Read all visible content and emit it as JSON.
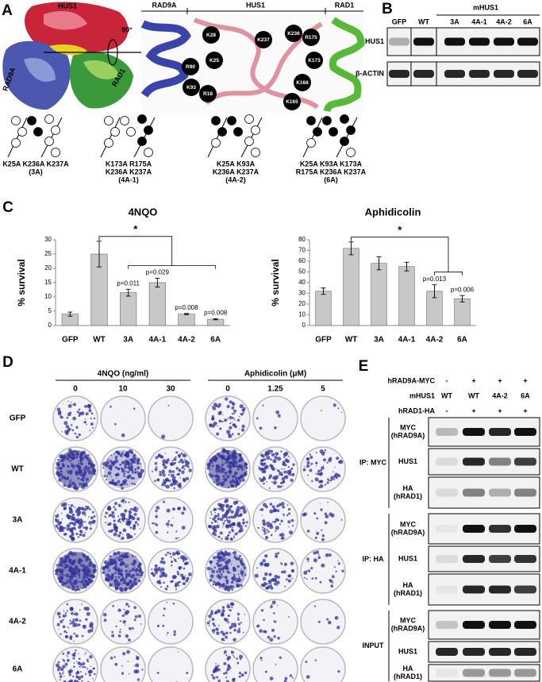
{
  "panel_a": {
    "label": "A",
    "surface_labels": [
      "HUS1",
      "RAD9A",
      "RAD1"
    ],
    "rotation": "90°",
    "ribbon_headers": [
      "RAD9A",
      "HUS1",
      "RAD1"
    ],
    "residues": [
      "K28",
      "K25",
      "R90",
      "K93",
      "R18",
      "K236",
      "K237",
      "R175",
      "K173",
      "K168",
      "K165"
    ],
    "mutants": [
      [
        "K25A K236A K237A",
        "(3A)"
      ],
      [
        "K173A R175A",
        "K236A K237A",
        "(4A-1)"
      ],
      [
        "K25A K93A",
        "K236A K237A",
        "(4A-2)"
      ],
      [
        "K25A K93A K173A",
        "R175A K236A K237A",
        "(6A)"
      ]
    ]
  },
  "panel_b": {
    "label": "B",
    "group": "mHUS1",
    "lanes": [
      "GFP",
      "WT",
      "3A",
      "4A-1",
      "4A-2",
      "6A"
    ],
    "rows": [
      "HUS1",
      "β-ACTIN"
    ]
  },
  "panel_c": {
    "label": "C"
  },
  "chart_data": [
    {
      "type": "bar",
      "title": "4NQO",
      "y_label": "% survival",
      "categories": [
        "GFP",
        "WT",
        "3A",
        "4A-1",
        "4A-2",
        "6A"
      ],
      "values": [
        4,
        25,
        11.5,
        15,
        4,
        2.2
      ],
      "errors": [
        0.7,
        4.5,
        1.2,
        1.5,
        0.2,
        0.2
      ],
      "annotations": [
        null,
        null,
        "p=0.011",
        "p=0.029",
        "p=0.008",
        "p=0.008"
      ],
      "significance": "*",
      "color": "#c8c8c8",
      "ylim": [
        0,
        30
      ],
      "yticks": [
        0,
        5,
        10,
        15,
        20,
        25,
        30
      ]
    },
    {
      "type": "bar",
      "title": "Aphidicolin",
      "y_label": "% survival",
      "categories": [
        "GFP",
        "WT",
        "3A",
        "4A-1",
        "4A-2",
        "6A"
      ],
      "values": [
        32,
        72,
        58,
        55,
        32,
        25
      ],
      "errors": [
        3,
        6,
        6,
        4,
        6,
        3
      ],
      "annotations": [
        null,
        null,
        null,
        null,
        "p=0.013",
        "p=0.006"
      ],
      "significance": "*",
      "color": "#c8c8c8",
      "ylim": [
        0,
        80
      ],
      "yticks": [
        0,
        10,
        20,
        30,
        40,
        50,
        60,
        70,
        80
      ]
    }
  ],
  "panel_d": {
    "label": "D",
    "treatments": [
      {
        "name": "4NQO (ng/ml)",
        "doses": [
          "0",
          "10",
          "30"
        ]
      },
      {
        "name": "Aphidicolin (μM)",
        "doses": [
          "0",
          "1.25",
          "5"
        ]
      }
    ],
    "rows": [
      "GFP",
      "WT",
      "3A",
      "4A-1",
      "4A-2",
      "6A"
    ]
  },
  "panel_e": {
    "label": "E",
    "conditions": [
      {
        "name": "hRAD9A-MYC",
        "lanes": [
          "-",
          "+",
          "+",
          "+"
        ]
      },
      {
        "name": "mHUS1",
        "lanes": [
          "WT",
          "WT",
          "4A-2",
          "6A"
        ]
      },
      {
        "name": "hRAD1-HA",
        "lanes": [
          "-",
          "+",
          "+",
          "+"
        ]
      }
    ],
    "groups": [
      {
        "name": "IP: MYC",
        "blots": [
          [
            "MYC",
            "(hRAD9A)"
          ],
          [
            "HUS1"
          ],
          [
            "HA",
            "(hRAD1)"
          ]
        ]
      },
      {
        "name": "IP: HA",
        "blots": [
          [
            "MYC",
            "(hRAD9A)"
          ],
          [
            "HUS1"
          ],
          [
            "HA",
            "(hRAD1)"
          ]
        ]
      },
      {
        "name": "INPUT",
        "blots": [
          [
            "MYC",
            "(hRAD9A)"
          ],
          [
            "HUS1"
          ],
          [
            "HA",
            "(hRAD1)"
          ]
        ]
      }
    ]
  }
}
